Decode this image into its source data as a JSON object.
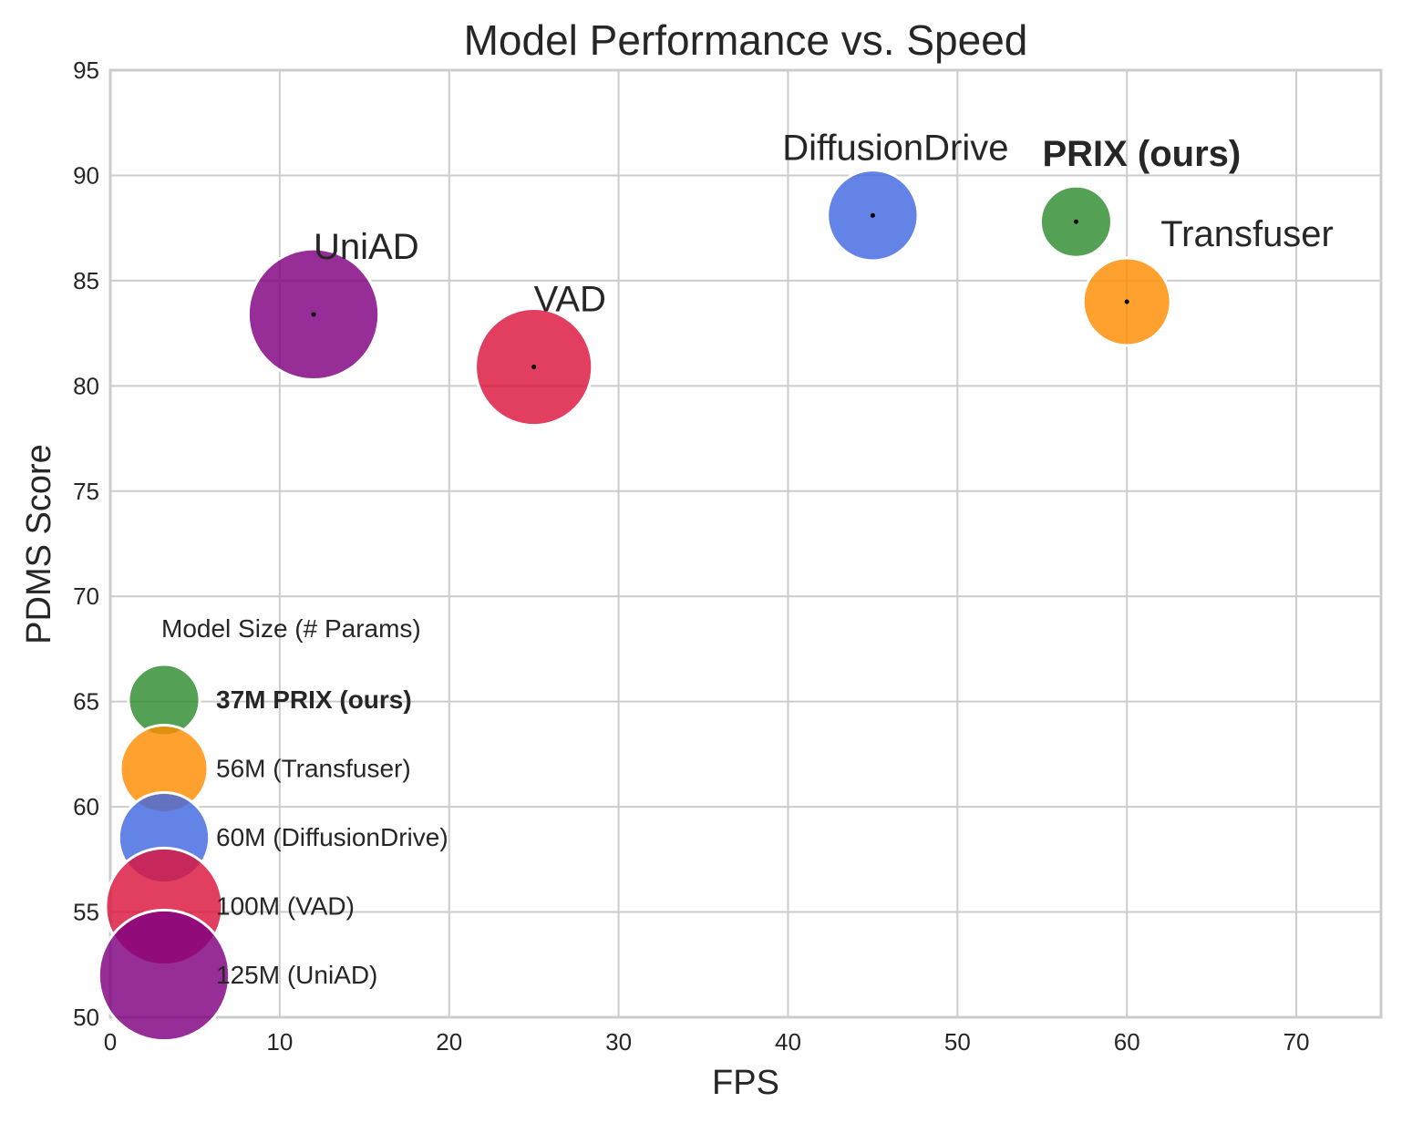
{
  "chart_data": {
    "type": "scatter",
    "title": "Model Performance vs. Speed",
    "xlabel": "FPS",
    "ylabel": "PDMS Score",
    "xlim": [
      0,
      75
    ],
    "ylim": [
      50,
      95
    ],
    "xticks": [
      "0",
      "10",
      "20",
      "30",
      "40",
      "50",
      "60",
      "70"
    ],
    "yticks": [
      "50",
      "55",
      "60",
      "65",
      "70",
      "75",
      "80",
      "85",
      "90",
      "95"
    ],
    "grid": true,
    "legend_position": "lower-left",
    "legend_title": "Model Size (# Params)",
    "points": [
      {
        "name": "PRIX (ours)",
        "x": 57,
        "y": 87.8,
        "params_m": 37,
        "color": "#2e8b2e",
        "bold": true,
        "legend_label": "37M PRIX (ours)"
      },
      {
        "name": "Transfuser",
        "x": 60,
        "y": 84.0,
        "params_m": 56,
        "color": "#ff8c00",
        "bold": false,
        "legend_label": "56M (Transfuser)"
      },
      {
        "name": "DiffusionDrive",
        "x": 45,
        "y": 88.1,
        "params_m": 60,
        "color": "#4169e1",
        "bold": false,
        "legend_label": "60M (DiffusionDrive)"
      },
      {
        "name": "VAD",
        "x": 25,
        "y": 80.9,
        "params_m": 100,
        "color": "#dc143c",
        "bold": false,
        "legend_label": "100M (VAD)"
      },
      {
        "name": "UniAD",
        "x": 12,
        "y": 83.4,
        "params_m": 125,
        "color": "#800080",
        "bold": false,
        "legend_label": "125M (UniAD)"
      }
    ]
  }
}
